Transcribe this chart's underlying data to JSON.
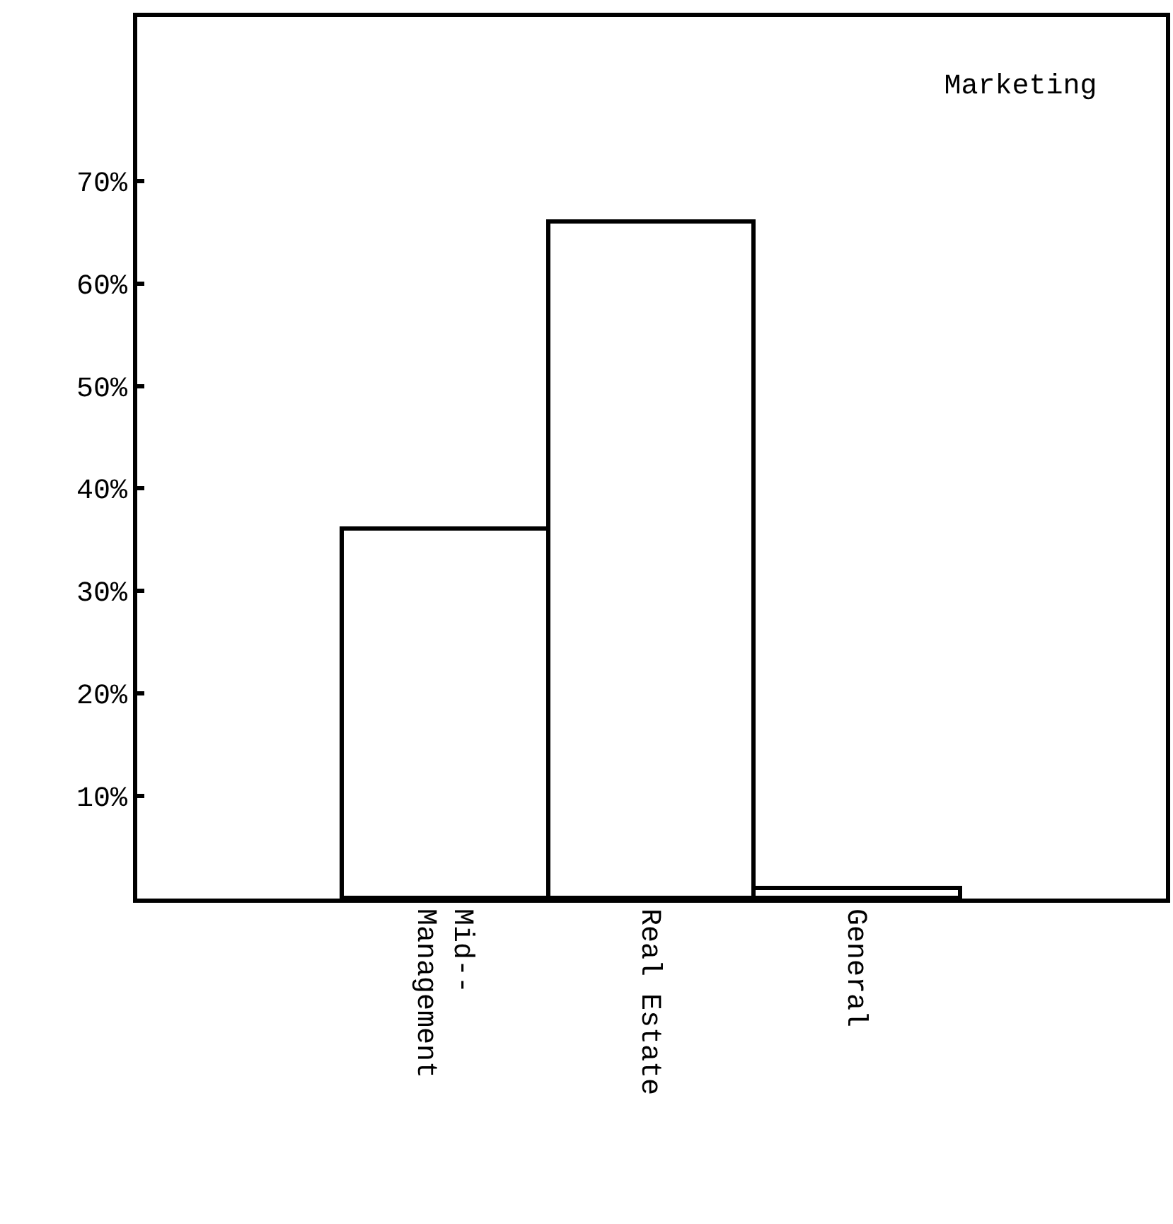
{
  "chart_data": {
    "type": "bar",
    "title": "Marketing",
    "categories": [
      null,
      "Mid--\nManagement",
      "Real Estate",
      "General",
      null
    ],
    "values": [
      null,
      36,
      66,
      1,
      null
    ],
    "color": "#ffffff",
    "ylim": [
      0,
      86
    ],
    "yticks": [
      {
        "value": 10,
        "label": "10%"
      },
      {
        "value": 20,
        "label": "20%"
      },
      {
        "value": 30,
        "label": "30%"
      },
      {
        "value": 40,
        "label": "40%"
      },
      {
        "value": 50,
        "label": "50%"
      },
      {
        "value": 60,
        "label": "60%"
      },
      {
        "value": 70,
        "label": "70%"
      }
    ],
    "legend": false
  }
}
